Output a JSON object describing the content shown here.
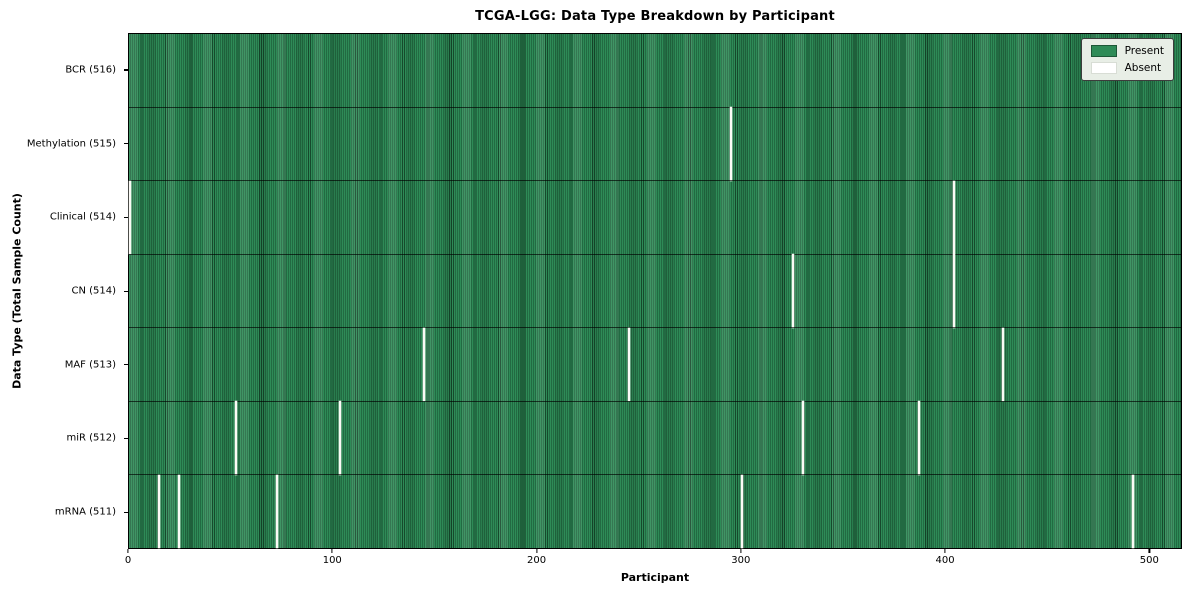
{
  "title": "TCGA-LGG: Data Type Breakdown by Participant",
  "chart_data": {
    "type": "heatmap",
    "title": "TCGA-LGG: Data Type Breakdown by Participant",
    "xlabel": "Participant",
    "ylabel": "Data Type (Total Sample Count)",
    "n_participants": 516,
    "xlim": [
      0,
      516
    ],
    "x_ticks": [
      0,
      100,
      200,
      300,
      400,
      500
    ],
    "grid": false,
    "legend_position": "upper right",
    "colors": {
      "present": "#2e8b57",
      "present_edge": "#16492c",
      "absent": "#ffffff",
      "legend_background": "#e8eee6"
    },
    "rows": [
      {
        "label": "BCR (516)",
        "data_type": "BCR",
        "total": 516,
        "absent_participants": []
      },
      {
        "label": "Methylation (515)",
        "data_type": "Methylation",
        "total": 515,
        "absent_participants": [
          295
        ]
      },
      {
        "label": "Clinical (514)",
        "data_type": "Clinical",
        "total": 514,
        "absent_participants": [
          0,
          404
        ]
      },
      {
        "label": "CN (514)",
        "data_type": "CN",
        "total": 514,
        "absent_participants": [
          325,
          404
        ]
      },
      {
        "label": "MAF (513)",
        "data_type": "MAF",
        "total": 513,
        "absent_participants": [
          144,
          245,
          428
        ]
      },
      {
        "label": "miR (512)",
        "data_type": "miR",
        "total": 512,
        "absent_participants": [
          52,
          103,
          330,
          387
        ]
      },
      {
        "label": "mRNA (511)",
        "data_type": "mRNA",
        "total": 511,
        "absent_participants": [
          14,
          24,
          72,
          300,
          492
        ]
      }
    ]
  },
  "legend": {
    "items": [
      {
        "label": "Present",
        "color": "#2e8b57",
        "edge": "#1d5737"
      },
      {
        "label": "Absent",
        "color": "#ffffff",
        "edge": "#d8ddd5"
      }
    ]
  }
}
